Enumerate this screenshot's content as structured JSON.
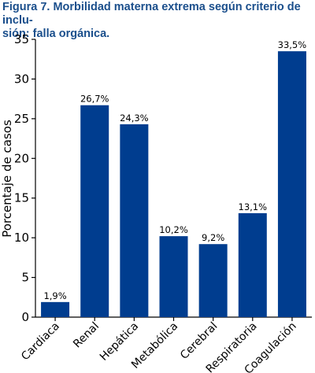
{
  "chart_data": {
    "type": "bar",
    "title": "Figura 7. Morbilidad materna extrema según criterio de inclu-sión: falla orgánica.",
    "title_lines": [
      "Figura 7. Morbilidad materna extrema según criterio de inclu-",
      "sión: falla orgánica."
    ],
    "ylabel": "Porcentaje de casos",
    "xlabel": "",
    "ylim": [
      0,
      35
    ],
    "yticks": [
      "0",
      "5",
      "10",
      "15",
      "20",
      "25",
      "30",
      "35"
    ],
    "categories": [
      "Cardiaca",
      "Renal",
      "Hepática",
      "Metabólica",
      "Cerebral",
      "Respiratoria",
      "Coagulación"
    ],
    "values": [
      1.9,
      26.7,
      24.3,
      10.2,
      9.2,
      13.1,
      33.5
    ],
    "data_labels": [
      "1,9%",
      "26,7%",
      "24,3%",
      "10,2%",
      "9,2%",
      "13,1%",
      "33,5%"
    ],
    "bar_color": "#003d8f",
    "grid": false,
    "legend": "none"
  }
}
